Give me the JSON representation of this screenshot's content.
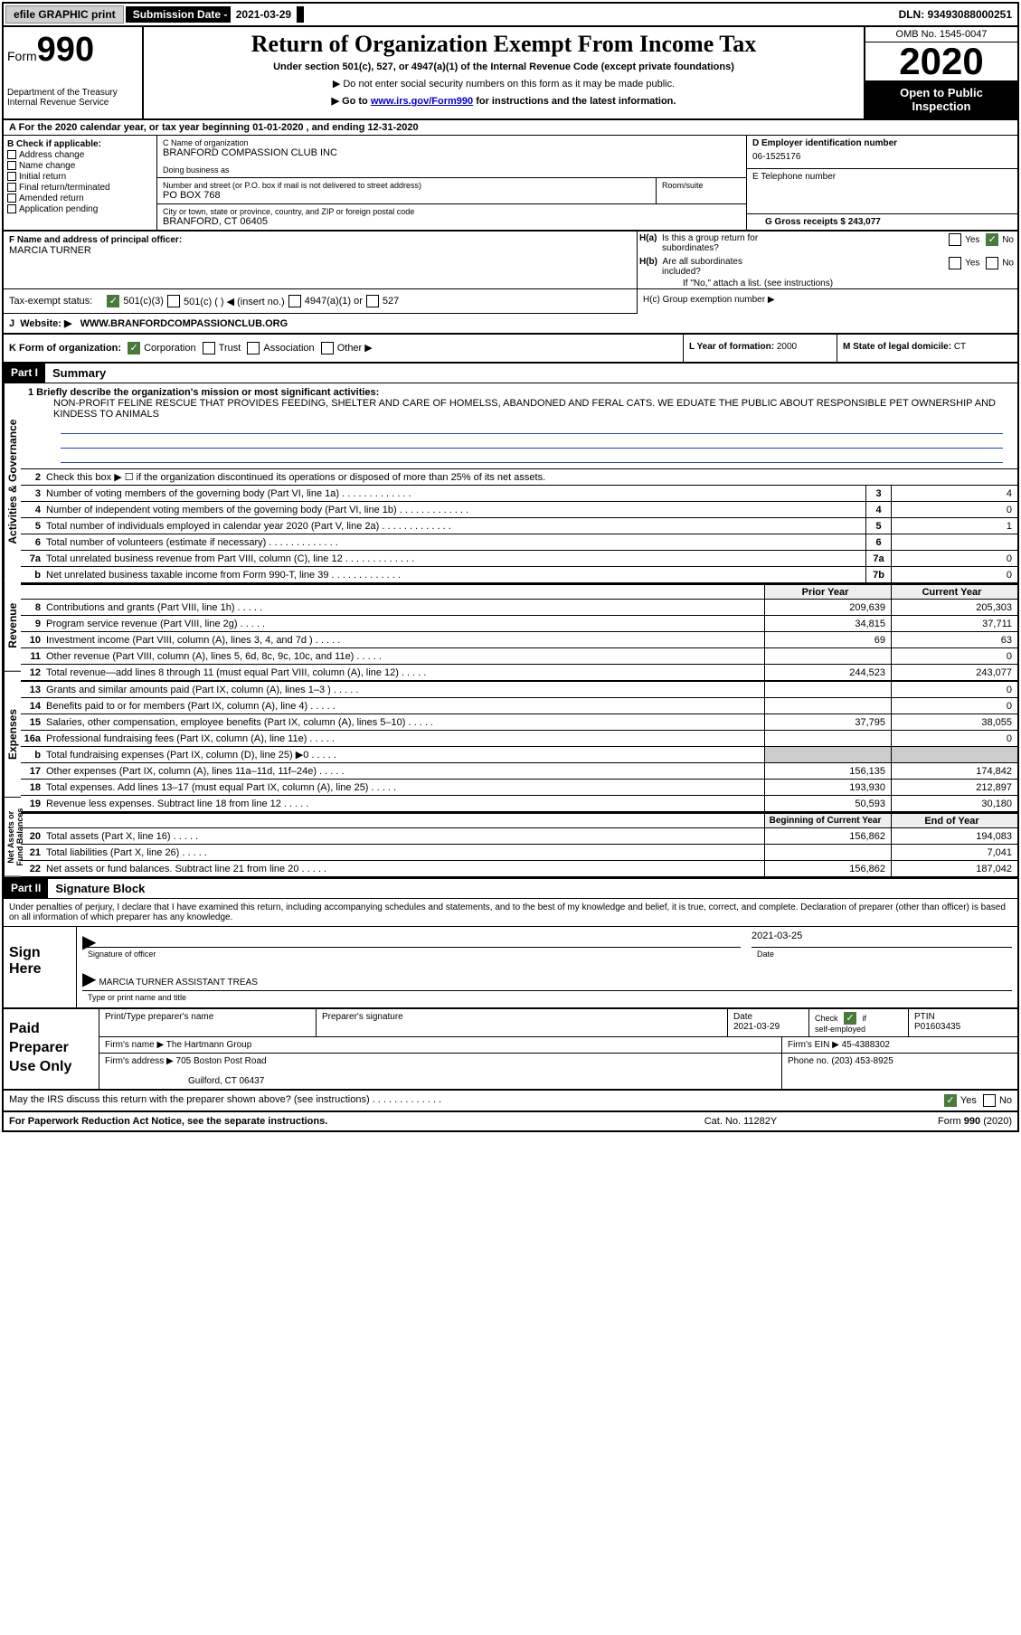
{
  "top": {
    "efile": "efile GRAPHIC print",
    "sub_label": "Submission Date - ",
    "sub_date": "2021-03-29",
    "dln": "DLN: 93493088000251"
  },
  "header": {
    "form_prefix": "Form",
    "form_num": "990",
    "dept": "Department of the Treasury\nInternal Revenue Service",
    "title": "Return of Organization Exempt From Income Tax",
    "sub1": "Under section 501(c), 527, or 4947(a)(1) of the Internal Revenue Code (except private foundations)",
    "sub2": "▶ Do not enter social security numbers on this form as it may be made public.",
    "sub3_pre": "▶ Go to ",
    "sub3_link": "www.irs.gov/Form990",
    "sub3_post": " for instructions and the latest information.",
    "omb": "OMB No. 1545-0047",
    "year": "2020",
    "open": "Open to Public Inspection"
  },
  "period": "A For the 2020 calendar year, or tax year beginning 01-01-2020    , and ending 12-31-2020",
  "boxB": {
    "title": "B Check if applicable:",
    "opts": [
      "Address change",
      "Name change",
      "Initial return",
      "Final return/terminated",
      "Amended return",
      "Application pending"
    ]
  },
  "boxC": {
    "name_lbl": "C Name of organization",
    "name": "BRANFORD COMPASSION CLUB INC",
    "dba_lbl": "Doing business as",
    "addr_lbl": "Number and street (or P.O. box if mail is not delivered to street address)",
    "room_lbl": "Room/suite",
    "addr": "PO BOX 768",
    "city_lbl": "City or town, state or province, country, and ZIP or foreign postal code",
    "city": "BRANFORD, CT  06405"
  },
  "boxD": {
    "lbl": "D Employer identification number",
    "val": "06-1525176"
  },
  "boxE": {
    "lbl": "E Telephone number",
    "val": ""
  },
  "boxG": {
    "lbl": "G Gross receipts $ 243,077"
  },
  "boxF": {
    "lbl": "F  Name and address of principal officer:",
    "val": "MARCIA TURNER"
  },
  "boxH": {
    "a": "H(a)  Is this a group return for subordinates?",
    "b": "H(b)  Are all subordinates included?",
    "b_note": "If \"No,\" attach a list. (see instructions)",
    "c": "H(c)  Group exemption number ▶"
  },
  "taxex": {
    "lbl": "Tax-exempt status:",
    "o1": "501(c)(3)",
    "o2": "501(c) (   ) ◀ (insert no.)",
    "o3": "4947(a)(1) or",
    "o4": "527"
  },
  "boxJ": {
    "lbl": "J",
    "txt": "Website: ▶",
    "val": "WWW.BRANFORDCOMPASSIONCLUB.ORG"
  },
  "boxK": "K Form of organization:",
  "boxK_opts": [
    "Corporation",
    "Trust",
    "Association",
    "Other ▶"
  ],
  "boxL": {
    "lbl": "L Year of formation: ",
    "val": "2000"
  },
  "boxM": {
    "lbl": "M State of legal domicile: ",
    "val": "CT"
  },
  "part1": {
    "hdr": "Part I",
    "title": "Summary",
    "vtabs": [
      "Activities & Governance",
      "Revenue",
      "Expenses",
      "Net Assets or Fund Balances"
    ],
    "l1_lbl": "1  Briefly describe the organization's mission or most significant activities:",
    "l1_val": "NON-PROFIT FELINE RESCUE THAT PROVIDES FEEDING, SHELTER AND CARE OF HOMELSS, ABANDONED AND FERAL CATS. WE EDUATE THE PUBLIC ABOUT RESPONSIBLE PET OWNERSHIP AND KINDESS TO ANIMALS",
    "l2": "Check this box ▶ ☐  if the organization discontinued its operations or disposed of more than 25% of its net assets.",
    "lines_gov": [
      {
        "n": "3",
        "t": "Number of voting members of the governing body (Part VI, line 1a)",
        "b": "3",
        "v": "4"
      },
      {
        "n": "4",
        "t": "Number of independent voting members of the governing body (Part VI, line 1b)",
        "b": "4",
        "v": "0"
      },
      {
        "n": "5",
        "t": "Total number of individuals employed in calendar year 2020 (Part V, line 2a)",
        "b": "5",
        "v": "1"
      },
      {
        "n": "6",
        "t": "Total number of volunteers (estimate if necessary)",
        "b": "6",
        "v": ""
      },
      {
        "n": "7a",
        "t": "Total unrelated business revenue from Part VIII, column (C), line 12",
        "b": "7a",
        "v": "0"
      },
      {
        "n": "b",
        "t": "Net unrelated business taxable income from Form 990-T, line 39",
        "b": "7b",
        "v": "0"
      }
    ],
    "col_py": "Prior Year",
    "col_cy": "Current Year",
    "lines_rev": [
      {
        "n": "8",
        "t": "Contributions and grants (Part VIII, line 1h)",
        "py": "209,639",
        "cy": "205,303"
      },
      {
        "n": "9",
        "t": "Program service revenue (Part VIII, line 2g)",
        "py": "34,815",
        "cy": "37,711"
      },
      {
        "n": "10",
        "t": "Investment income (Part VIII, column (A), lines 3, 4, and 7d )",
        "py": "69",
        "cy": "63"
      },
      {
        "n": "11",
        "t": "Other revenue (Part VIII, column (A), lines 5, 6d, 8c, 9c, 10c, and 11e)",
        "py": "",
        "cy": "0"
      },
      {
        "n": "12",
        "t": "Total revenue—add lines 8 through 11 (must equal Part VIII, column (A), line 12)",
        "py": "244,523",
        "cy": "243,077"
      }
    ],
    "lines_exp": [
      {
        "n": "13",
        "t": "Grants and similar amounts paid (Part IX, column (A), lines 1–3 )",
        "py": "",
        "cy": "0"
      },
      {
        "n": "14",
        "t": "Benefits paid to or for members (Part IX, column (A), line 4)",
        "py": "",
        "cy": "0"
      },
      {
        "n": "15",
        "t": "Salaries, other compensation, employee benefits (Part IX, column (A), lines 5–10)",
        "py": "37,795",
        "cy": "38,055"
      },
      {
        "n": "16a",
        "t": "Professional fundraising fees (Part IX, column (A), line 11e)",
        "py": "",
        "cy": "0"
      },
      {
        "n": "b",
        "t": "Total fundraising expenses (Part IX, column (D), line 25) ▶0",
        "py": "SHADE",
        "cy": "SHADE"
      },
      {
        "n": "17",
        "t": "Other expenses (Part IX, column (A), lines 11a–11d, 11f–24e)",
        "py": "156,135",
        "cy": "174,842"
      },
      {
        "n": "18",
        "t": "Total expenses. Add lines 13–17 (must equal Part IX, column (A), line 25)",
        "py": "193,930",
        "cy": "212,897"
      },
      {
        "n": "19",
        "t": "Revenue less expenses. Subtract line 18 from line 12",
        "py": "50,593",
        "cy": "30,180"
      }
    ],
    "col_boy": "Beginning of Current Year",
    "col_eoy": "End of Year",
    "lines_na": [
      {
        "n": "20",
        "t": "Total assets (Part X, line 16)",
        "py": "156,862",
        "cy": "194,083"
      },
      {
        "n": "21",
        "t": "Total liabilities (Part X, line 26)",
        "py": "",
        "cy": "7,041"
      },
      {
        "n": "22",
        "t": "Net assets or fund balances. Subtract line 21 from line 20",
        "py": "156,862",
        "cy": "187,042"
      }
    ]
  },
  "part2": {
    "hdr": "Part II",
    "title": "Signature Block",
    "decl": "Under penalties of perjury, I declare that I have examined this return, including accompanying schedules and statements, and to the best of my knowledge and belief, it is true, correct, and complete. Declaration of preparer (other than officer) is based on all information of which preparer has any knowledge."
  },
  "sign": {
    "here": "Sign Here",
    "sig_lbl": "Signature of officer",
    "date_lbl": "Date",
    "date": "2021-03-25",
    "name": "MARCIA TURNER  ASSISTANT TREAS",
    "name_lbl": "Type or print name and title"
  },
  "prep": {
    "lbl": "Paid Preparer Use Only",
    "h1": "Print/Type preparer's name",
    "h2": "Preparer's signature",
    "h3_lbl": "Date",
    "h3": "2021-03-29",
    "h4": "Check ☑ if self-employed",
    "h5_lbl": "PTIN",
    "h5": "P01603435",
    "firm_lbl": "Firm's name    ▶",
    "firm": "The Hartmann Group",
    "ein_lbl": "Firm's EIN ▶",
    "ein": "45-4388302",
    "addr_lbl": "Firm's address ▶",
    "addr1": "705 Boston Post Road",
    "addr2": "Guilford, CT  06437",
    "phone_lbl": "Phone no.",
    "phone": "(203) 453-8925"
  },
  "discuss": "May the IRS discuss this return with the preparer shown above? (see instructions)",
  "footer": {
    "l": "For Paperwork Reduction Act Notice, see the separate instructions.",
    "m": "Cat. No. 11282Y",
    "r": "Form 990 (2020)"
  }
}
